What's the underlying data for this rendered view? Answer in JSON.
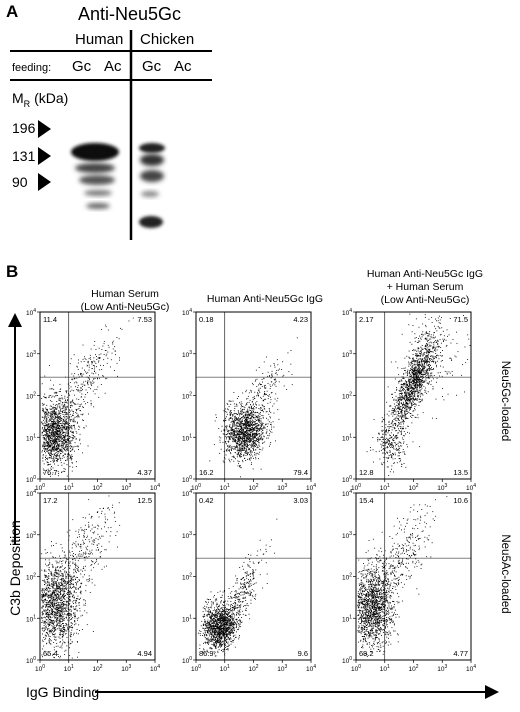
{
  "panel_a": {
    "letter": "A",
    "title": "Anti-Neu5Gc",
    "species": [
      "Human",
      "Chicken"
    ],
    "feeding_label": "feeding:",
    "lanes": [
      "Gc",
      "Ac",
      "Gc",
      "Ac"
    ],
    "mr_label": "M",
    "mr_sub": "R",
    "mr_unit": "(kDa)",
    "markers": [
      "196",
      "131",
      "90"
    ]
  },
  "panel_b": {
    "letter": "B",
    "columns": [
      [
        "Human Serum",
        "(Low Anti-Neu5Gc)"
      ],
      [
        "Human Anti-Neu5Gc IgG"
      ],
      [
        "Human Anti-Neu5Gc IgG",
        "+ Human Serum",
        "(Low Anti-Neu5Gc)"
      ]
    ],
    "rows": [
      "Neu5Gc-loaded",
      "Neu5Ac-loaded"
    ],
    "y_axis_label": "C3b Deposition",
    "x_axis_label": "IgG Binding",
    "tick_exponents": [
      "0",
      "1",
      "2",
      "3",
      "4"
    ],
    "quadrants": [
      {
        "ul": "11.4",
        "ur": "7.53",
        "ll": "76.7",
        "lr": "4.37"
      },
      {
        "ul": "0.18",
        "ur": "4.23",
        "ll": "16.2",
        "lr": "79.4"
      },
      {
        "ul": "2.17",
        "ur": "71.5",
        "ll": "12.8",
        "lr": "13.5"
      },
      {
        "ul": "17.2",
        "ur": "12.5",
        "ll": "65.4",
        "lr": "4.94"
      },
      {
        "ul": "0.42",
        "ur": "3.03",
        "ll": "86.9",
        "lr": "9.6"
      },
      {
        "ul": "15.4",
        "ur": "10.6",
        "ll": "69.2",
        "lr": "4.77"
      }
    ]
  }
}
